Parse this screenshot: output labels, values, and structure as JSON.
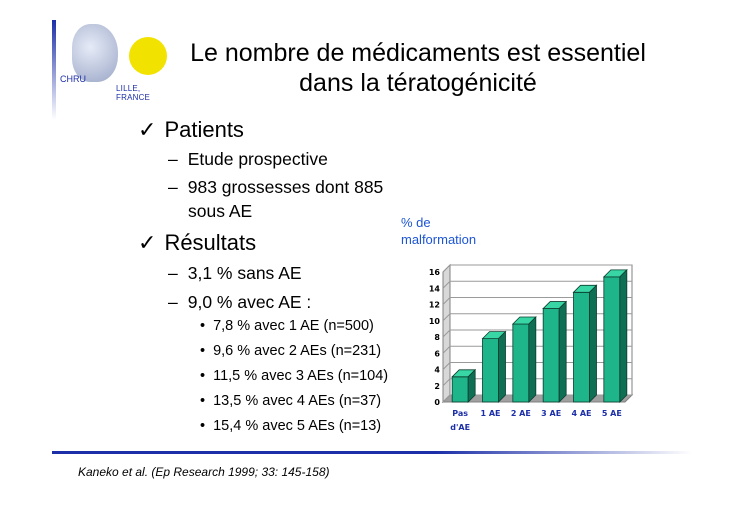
{
  "logo": {
    "chru": "CHRU",
    "lille": "LILLE, FRANCE"
  },
  "title": {
    "line1": "Le nombre de médicaments est essentiel",
    "line2": "dans la tératogénicité"
  },
  "content": {
    "patients": {
      "heading": "Patients",
      "items": [
        "Etude prospective",
        "983 grossesses dont 885",
        "sous AE"
      ]
    },
    "resultats": {
      "heading": "Résultats",
      "items": [
        "3,1 % sans AE",
        "9,0 % avec AE :"
      ],
      "subitems": [
        "7,8 % avec 1 AE (n=500)",
        "9,6 % avec 2 AEs (n=231)",
        "11,5 % avec 3 AEs (n=104)",
        "13,5 % avec 4 AEs (n=37)",
        "15,4 % avec 5 AEs (n=13)"
      ]
    }
  },
  "chart_data": {
    "type": "bar",
    "ylabel_line1": "% de",
    "ylabel_line2": "malformation",
    "categories": [
      "Pas d'AE",
      "1 AE",
      "2 AE",
      "3 AE",
      "4 AE",
      "5 AE"
    ],
    "category_labels_line1": [
      "Pas",
      "1 AE",
      "2 AE",
      "3 AE",
      "4 AE",
      "5 AE"
    ],
    "category_labels_line2": [
      "d'AE",
      "",
      "",
      "",
      "",
      ""
    ],
    "values": [
      3.1,
      7.8,
      9.6,
      11.5,
      13.5,
      15.4
    ],
    "yticks": [
      0,
      2,
      4,
      6,
      8,
      10,
      12,
      14,
      16
    ],
    "ylim": [
      0,
      16
    ],
    "grid": true,
    "bar_color": "#1fb58a",
    "bar_top_color": "#38d6a4",
    "bar_side_color": "#0f6f54"
  },
  "footer": {
    "citation": "Kaneko et al. (Ep Research 1999; 33: 145-158)"
  }
}
